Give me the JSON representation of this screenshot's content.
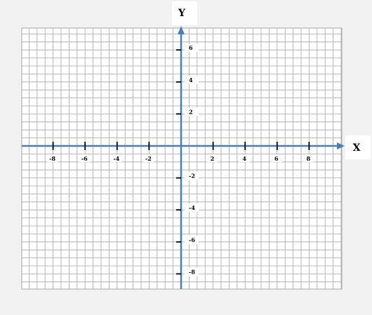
{
  "chart_data": {
    "type": "coordinate-plane",
    "title": "",
    "xlabel": "X",
    "ylabel": "Y",
    "xlim": [
      -10,
      10
    ],
    "ylim": [
      -8.5,
      7.5
    ],
    "grid": true,
    "x_ticks": [
      -8,
      -6,
      -4,
      -2,
      2,
      4,
      6,
      8
    ],
    "y_ticks": [
      -8,
      -6,
      -4,
      -2,
      2,
      4,
      6
    ],
    "x_tick_labels": [
      "-8",
      "-6",
      "-4",
      "-2",
      "2",
      "4",
      "6",
      "8"
    ],
    "y_tick_labels": [
      "-8",
      "-6",
      "-4",
      "-2",
      "2",
      "4",
      "6"
    ]
  },
  "colors": {
    "background": "#f2f2f2",
    "grid_area": "#ffffff",
    "grid_line": "#a6a6a6",
    "axis": "#4a7ebb",
    "tick": "#000000"
  }
}
